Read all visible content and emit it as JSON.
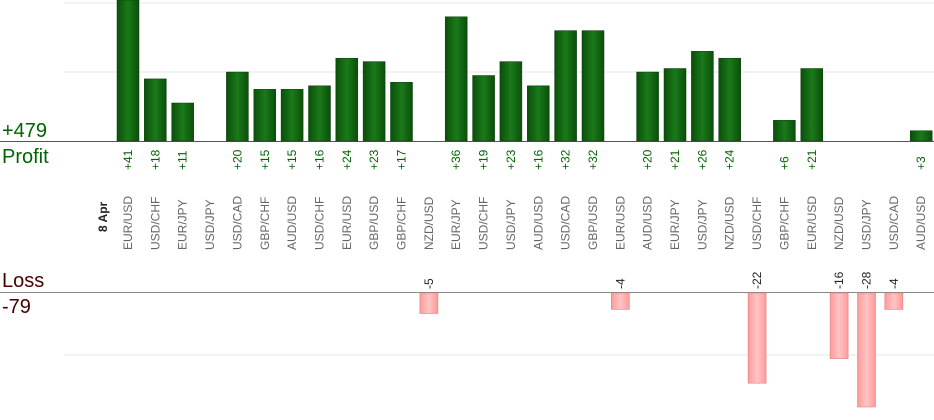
{
  "summary": {
    "profit_total": "+479",
    "profit_label": "Profit",
    "loss_label": "Loss",
    "loss_total": "-79"
  },
  "chart_data": {
    "type": "bar",
    "date_label": "8 Apr",
    "categories": [
      "EUR/USD",
      "USD/CHF",
      "EUR/JPY",
      "USD/JPY",
      "USD/CAD",
      "GBP/CHF",
      "AUD/USD",
      "USD/CHF",
      "EUR/USD",
      "GBP/USD",
      "GBP/CHF",
      "NZD/USD",
      "EUR/JPY",
      "USD/CHF",
      "USD/JPY",
      "AUD/USD",
      "USD/CAD",
      "GBP/USD",
      "EUR/USD",
      "AUD/USD",
      "EUR/JPY",
      "USD/JPY",
      "NZD/USD",
      "USD/CHF",
      "GBP/CHF",
      "EUR/USD",
      "NZD/USD",
      "USD/JPY",
      "USD/CAD",
      "AUD/USD"
    ],
    "series": [
      {
        "values": [
          41,
          18,
          11,
          null,
          20,
          15,
          15,
          16,
          24,
          23,
          17,
          null,
          36,
          19,
          23,
          16,
          32,
          32,
          null,
          20,
          21,
          26,
          24,
          null,
          6,
          21,
          null,
          null,
          null,
          3
        ],
        "labels": [
          "+41",
          "+18",
          "+11",
          "",
          "+20",
          "+15",
          "+15",
          "+16",
          "+24",
          "+23",
          "+17",
          "",
          "+36",
          "+19",
          "+23",
          "+16",
          "+32",
          "+32",
          "",
          "+20",
          "+21",
          "+26",
          "+24",
          "",
          "+6",
          "+21",
          "",
          "",
          "",
          "+3"
        ]
      },
      {
        "values": [
          null,
          null,
          null,
          null,
          null,
          null,
          null,
          null,
          null,
          null,
          null,
          -5,
          null,
          null,
          null,
          null,
          null,
          null,
          -4,
          null,
          null,
          null,
          null,
          -22,
          null,
          null,
          -16,
          -28,
          -4,
          null
        ],
        "labels": [
          "",
          "",
          "",
          "",
          "",
          "",
          "",
          "",
          "",
          "",
          "",
          "-5",
          "",
          "",
          "",
          "",
          "",
          "",
          "-4",
          "",
          "",
          "",
          "",
          "-22",
          "",
          "",
          "-16",
          "-28",
          "-4",
          ""
        ]
      }
    ],
    "colors": {
      "profit": "#1a6e1a",
      "loss": "#ffb3b3",
      "profit_text": "#006400",
      "loss_text": "#4a0000"
    },
    "grid": true
  }
}
